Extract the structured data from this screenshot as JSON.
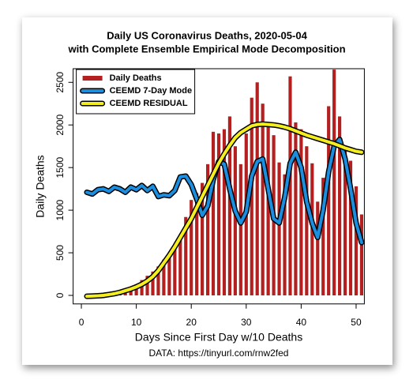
{
  "chart_data": {
    "type": "combo",
    "title": "Daily US Coronavirus Deaths, 2020-05-04",
    "subtitle": "with Complete Ensemble Empirical Mode Decomposition",
    "x_label": "Days Since First Day w/10 Deaths",
    "y_label": "Daily Deaths",
    "source": "DATA: https://tinyurl.com/rnw2fed",
    "legend": "top-left",
    "x": [
      1,
      2,
      3,
      4,
      5,
      6,
      7,
      8,
      9,
      10,
      11,
      12,
      13,
      14,
      15,
      16,
      17,
      18,
      19,
      20,
      21,
      22,
      23,
      24,
      25,
      26,
      27,
      28,
      29,
      30,
      31,
      32,
      33,
      34,
      35,
      36,
      37,
      38,
      39,
      40,
      41,
      42,
      43,
      44,
      45,
      46,
      47,
      48,
      49,
      50,
      51
    ],
    "series": [
      {
        "name": "Daily Deaths",
        "type": "bar",
        "color": "#b3201f",
        "values": [
          10,
          15,
          20,
          25,
          30,
          40,
          55,
          75,
          100,
          130,
          180,
          230,
          280,
          340,
          420,
          480,
          560,
          680,
          920,
          1120,
          1200,
          1320,
          1540,
          1920,
          1900,
          1950,
          2100,
          1750,
          1540,
          1900,
          2320,
          2500,
          2250,
          2000,
          1880,
          1560,
          1420,
          2570,
          2030,
          1950,
          1750,
          1550,
          1100,
          1380,
          2220,
          2650,
          2100,
          1700,
          1580,
          1280,
          950
        ]
      },
      {
        "name": "CEEMD 7-Day Mode",
        "type": "line",
        "color": "#1b8ee0",
        "values": [
          1210,
          1190,
          1240,
          1250,
          1220,
          1270,
          1250,
          1210,
          1270,
          1240,
          1290,
          1230,
          1280,
          1160,
          1180,
          1170,
          1230,
          1390,
          1400,
          1300,
          1130,
          940,
          1050,
          1360,
          1570,
          1540,
          1250,
          990,
          850,
          980,
          1400,
          1570,
          1600,
          1250,
          900,
          850,
          1150,
          1550,
          1680,
          1500,
          1100,
          850,
          680,
          1000,
          1450,
          1750,
          1830,
          1600,
          1250,
          850,
          620
        ]
      },
      {
        "name": "CEEMD RESIDUAL",
        "type": "line",
        "color": "#f5ee1f",
        "values": [
          -10,
          -8,
          -5,
          0,
          10,
          20,
          35,
          55,
          75,
          100,
          130,
          170,
          220,
          290,
          380,
          470,
          570,
          680,
          790,
          900,
          1030,
          1160,
          1290,
          1420,
          1550,
          1660,
          1760,
          1850,
          1910,
          1950,
          1990,
          2005,
          2010,
          2005,
          2000,
          1990,
          1975,
          1955,
          1930,
          1905,
          1880,
          1860,
          1840,
          1820,
          1800,
          1780,
          1755,
          1730,
          1710,
          1690,
          1680
        ]
      }
    ],
    "xlim": [
      -1.5,
      51.5
    ],
    "xticks": [
      0,
      10,
      20,
      30,
      40,
      50
    ],
    "ylim": [
      -100,
      2660
    ],
    "yticks": [
      0,
      500,
      1000,
      1500,
      2000,
      2500
    ],
    "grid": false
  }
}
